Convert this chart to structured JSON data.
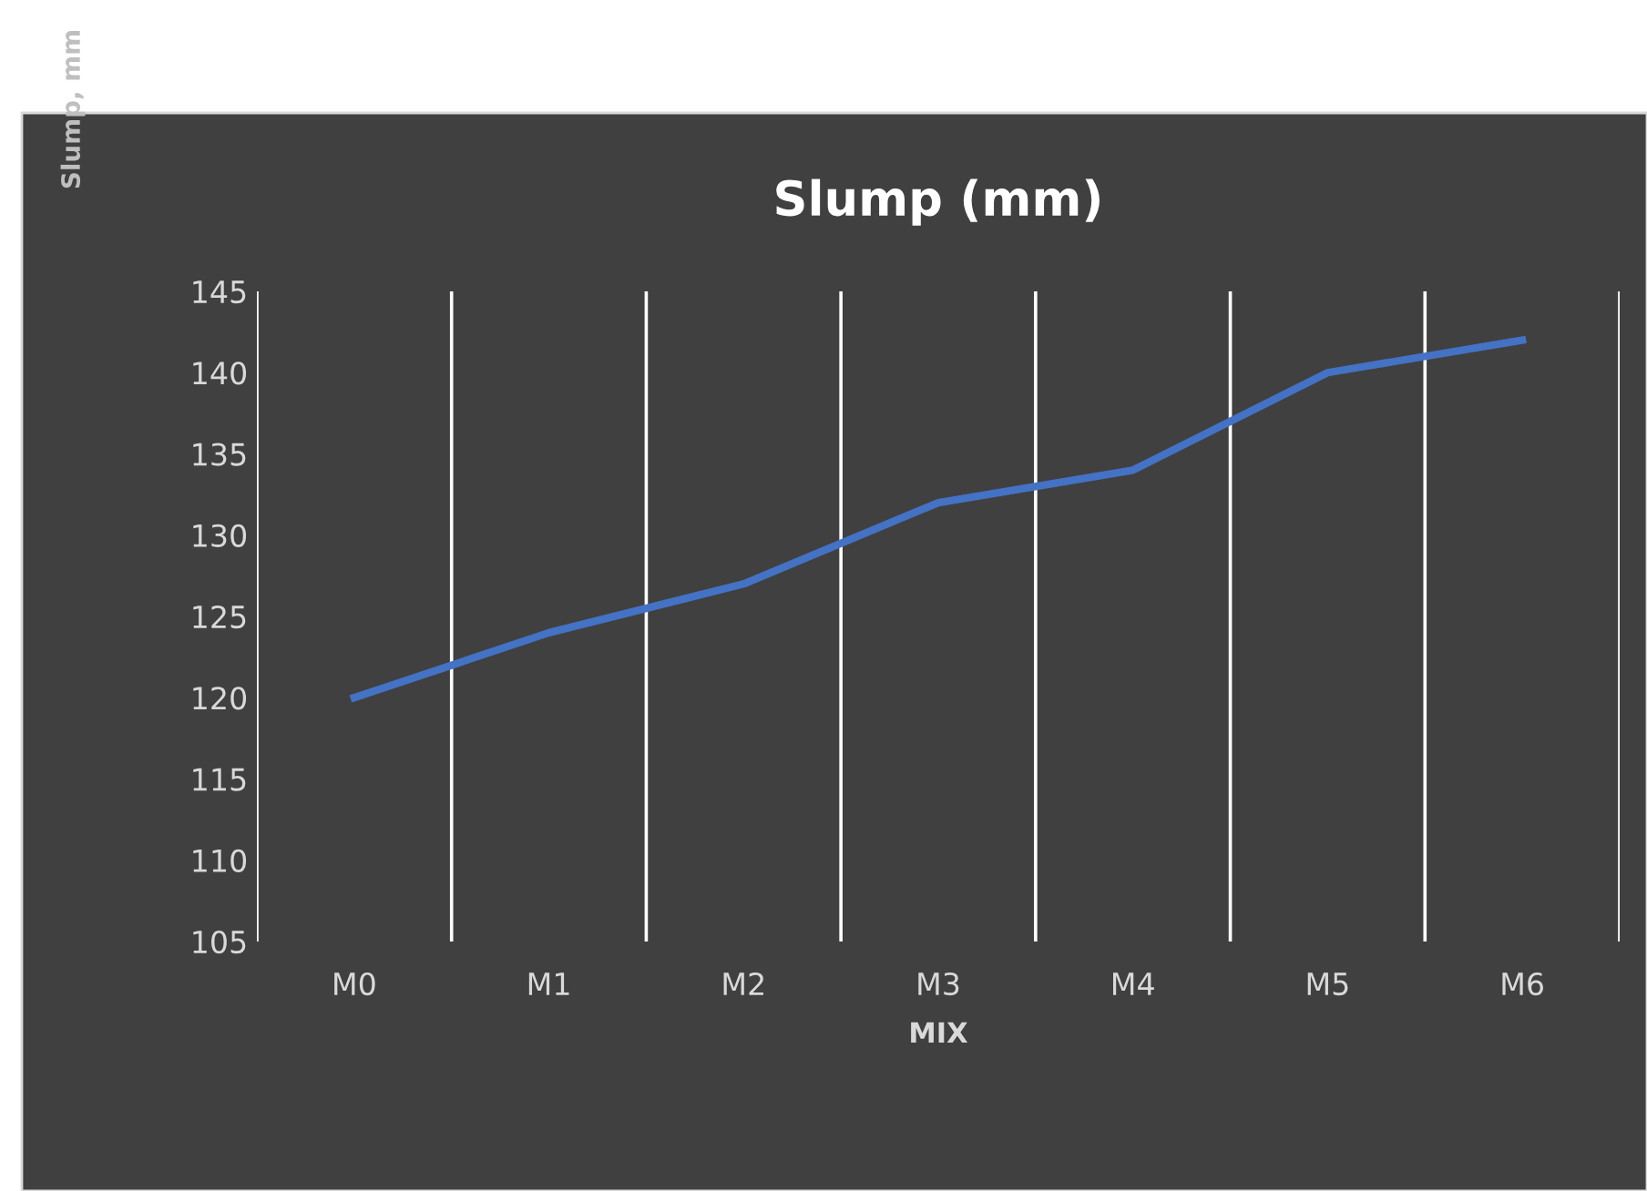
{
  "chart_data": {
    "type": "line",
    "title": "Slump (mm)",
    "xlabel": "MIX",
    "annotations": [
      "Slump, mm"
    ],
    "categories": [
      "M0",
      "M1",
      "M2",
      "M3",
      "M4",
      "M5",
      "M6"
    ],
    "series": [
      {
        "color": "#4472c4",
        "values": [
          120,
          124,
          127,
          132,
          134,
          140,
          142
        ]
      }
    ],
    "ylim": [
      105,
      145
    ],
    "yticks": [
      105,
      110,
      115,
      120,
      125,
      130,
      135,
      140,
      145
    ],
    "grid": "x",
    "legend": false,
    "marker": "none",
    "line_style": "solid"
  }
}
